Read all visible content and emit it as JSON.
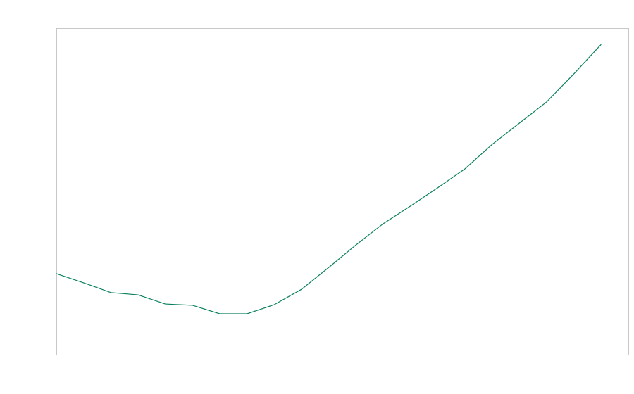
{
  "chart_data": {
    "type": "line",
    "x": [
      0,
      1,
      2,
      3,
      4,
      5,
      6,
      7,
      8,
      9,
      10,
      11,
      12,
      13,
      14,
      15,
      16,
      17,
      18,
      19,
      20
    ],
    "values": [
      24.8,
      22.0,
      19.0,
      18.3,
      15.5,
      15.1,
      12.5,
      12.5,
      15.3,
      20.0,
      26.7,
      33.6,
      40.1,
      45.5,
      51.1,
      56.9,
      64.4,
      70.9,
      77.4,
      86.0,
      95.0
    ],
    "color": "#0b8060",
    "xlim": [
      0,
      21
    ],
    "ylim": [
      0,
      100
    ]
  }
}
